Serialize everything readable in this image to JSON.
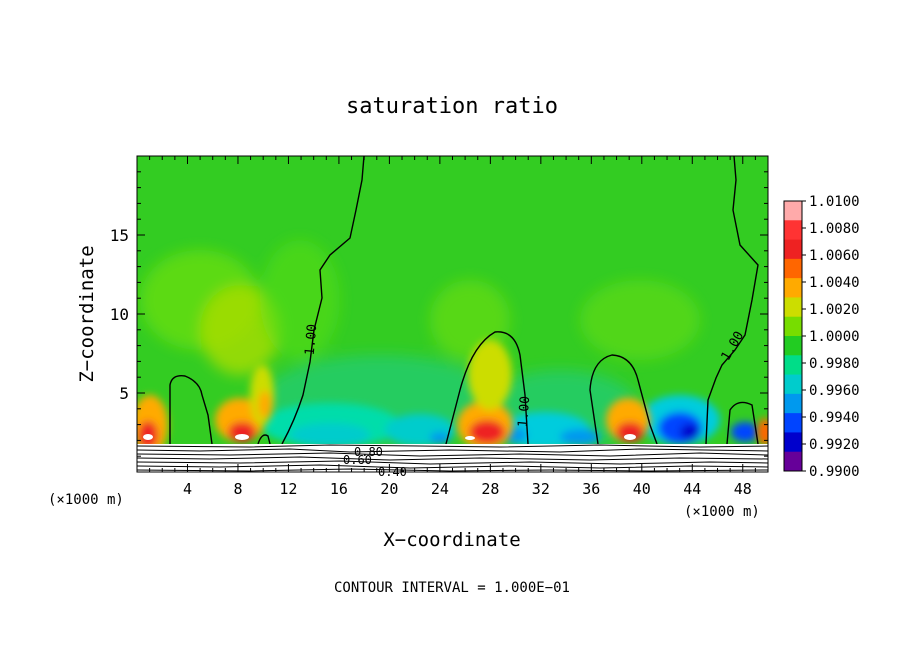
{
  "chart_data": {
    "type": "heatmap",
    "title": "saturation ratio",
    "xlabel": "X−coordinate",
    "ylabel": "Z−coordinate",
    "x_unit": "(×1000 m)",
    "x_unit_right": "(×1000 m)",
    "xlim": [
      0,
      50
    ],
    "ylim": [
      0,
      20
    ],
    "x_ticks": [
      4,
      8,
      12,
      16,
      20,
      24,
      28,
      32,
      36,
      40,
      44,
      48
    ],
    "y_ticks": [
      5,
      10,
      15
    ],
    "footer": "CONTOUR INTERVAL = 1.000E−01",
    "colorbar": {
      "levels": [
        "1.0100",
        "1.0080",
        "1.0060",
        "1.0040",
        "1.0020",
        "1.0000",
        "0.9980",
        "0.9960",
        "0.9940",
        "0.9920",
        "0.9900"
      ],
      "colors": [
        "#ffaaaa",
        "#ff3333",
        "#ee2222",
        "#ff6600",
        "#ffaa00",
        "#ccdd00",
        "#77dd00",
        "#22cc22",
        "#00dd88",
        "#00cccc",
        "#0099ee",
        "#0044ff",
        "#0000cc",
        "#660099"
      ]
    },
    "contour_labels": [
      "1.00",
      "1.00",
      "1.00",
      "0.80",
      "0.60",
      "0.40"
    ],
    "plumes": [
      {
        "x": 1,
        "height": 6.0
      },
      {
        "x": 8,
        "height": 5.0
      },
      {
        "x": 28,
        "height": 8.5
      },
      {
        "x": 39,
        "height": 7.0
      },
      {
        "x": 48,
        "height": 4.5
      }
    ]
  }
}
